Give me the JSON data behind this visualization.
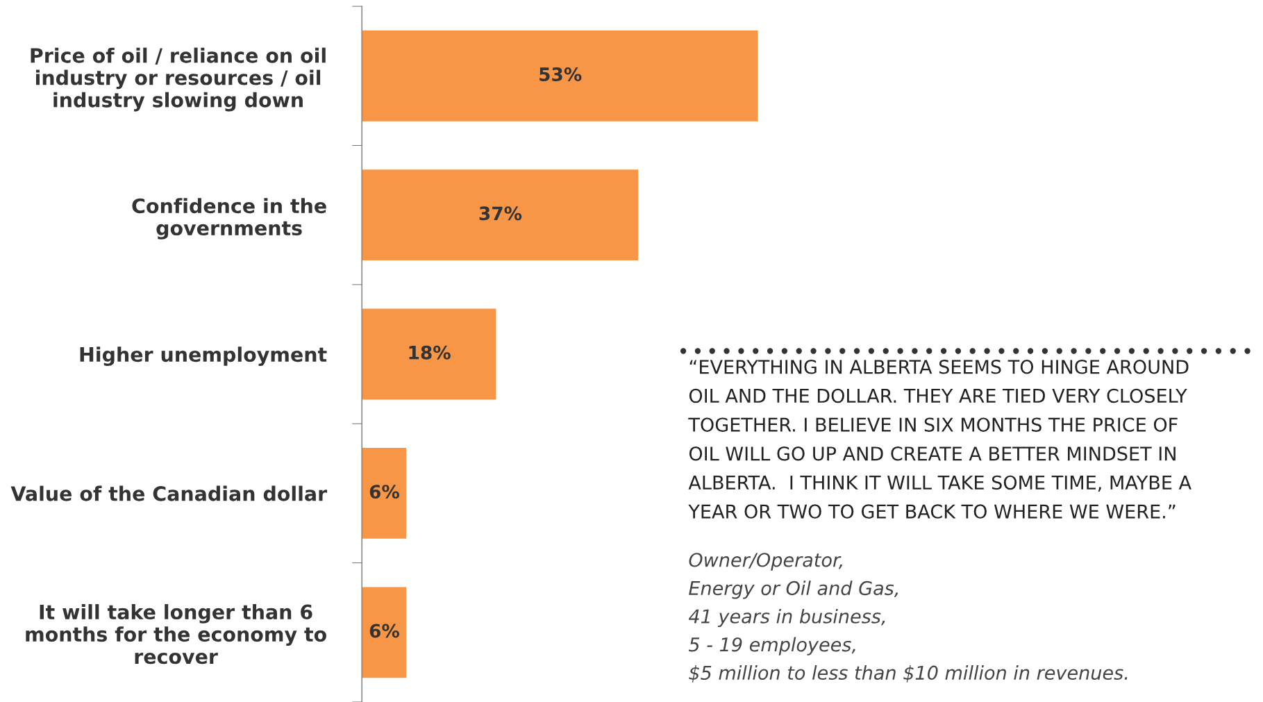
{
  "chart_data": {
    "type": "bar",
    "orientation": "horizontal",
    "categories": [
      "Price of oil / reliance on oil\nindustry or resources / oil\nindustry slowing down",
      "Confidence in the\ngovernments",
      "Higher unemployment",
      "Value of the Canadian dollar",
      "It will take longer than 6\nmonths for the economy to\nrecover"
    ],
    "values": [
      53,
      37,
      18,
      6,
      6
    ],
    "value_labels": [
      "53%",
      "37%",
      "18%",
      "6%",
      "6%"
    ],
    "color": "#f79646",
    "tick_labels": "y",
    "grid": false,
    "annotations": [
      "“EVERYTHING IN ALBERTA SEEMS TO HINGE AROUND\nOIL AND THE DOLLAR. THEY ARE TIED VERY CLOSELY\nTOGETHER. I BELIEVE IN SIX MONTHS THE PRICE OF\nOIL WILL GO UP AND CREATE A BETTER MINDSET IN\nALBERTA.  I THINK IT WILL TAKE SOME TIME, MAYBE A\nYEAR OR TWO TO GET BACK TO WHERE WE WERE.”",
      "Owner/Operator,\nEnergy or Oil and Gas,\n41 years in business,\n5 - 19 employees,\n$5 million to less than $10 million in revenues."
    ]
  }
}
